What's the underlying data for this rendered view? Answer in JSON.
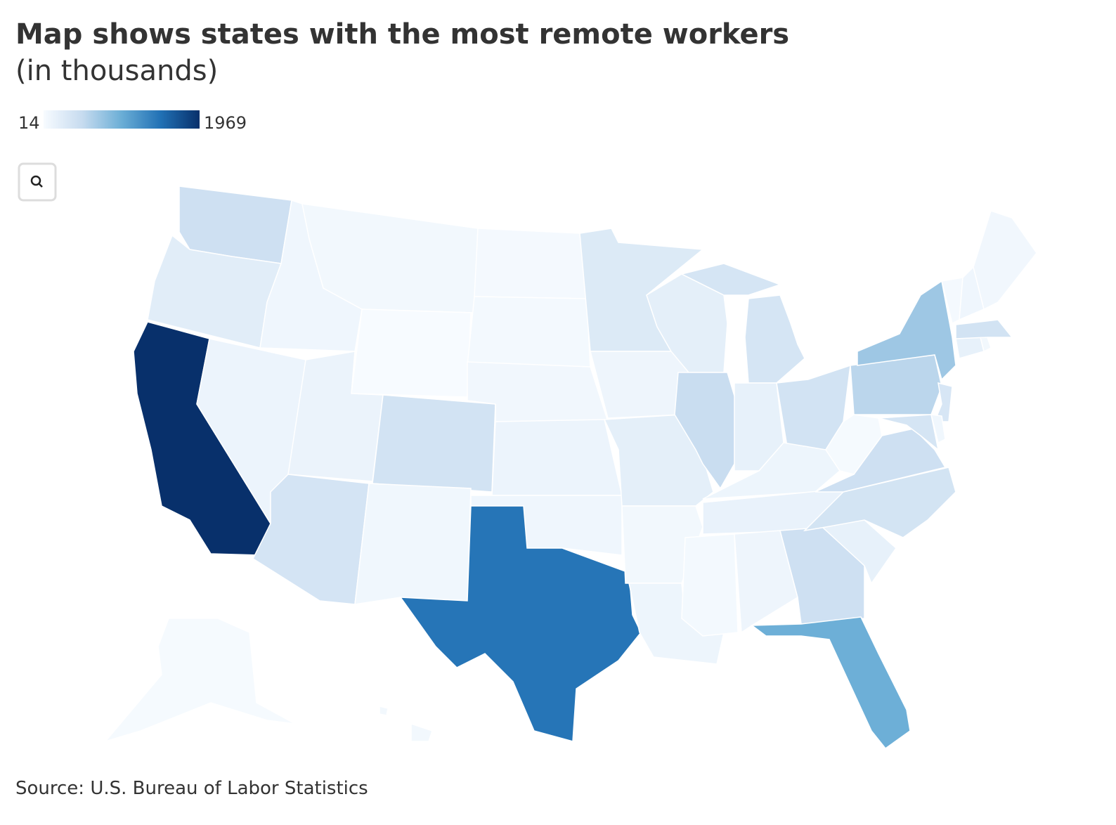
{
  "chart_data": {
    "type": "choropleth",
    "title": "Map shows states with the most remote workers",
    "subtitle": "(in thousands)",
    "source": "Source: U.S. Bureau of Labor Statistics",
    "range": [
      14,
      1969
    ],
    "colorscale": [
      "#f7fbff",
      "#c6dbef",
      "#6baed6",
      "#2171b5",
      "#08306b"
    ],
    "values": [
      420,
      230,
      1969,
      120,
      90,
      60,
      14,
      130,
      360,
      380,
      80,
      40,
      50,
      70,
      120,
      90,
      1450,
      280,
      100,
      200,
      60,
      110,
      200,
      470,
      350,
      170,
      380,
      110,
      150,
      50,
      100,
      420,
      980,
      170,
      370,
      420,
      30,
      560,
      720,
      330,
      350,
      80,
      170,
      60,
      380,
      40,
      90,
      70,
      30,
      60
    ]
  }
}
